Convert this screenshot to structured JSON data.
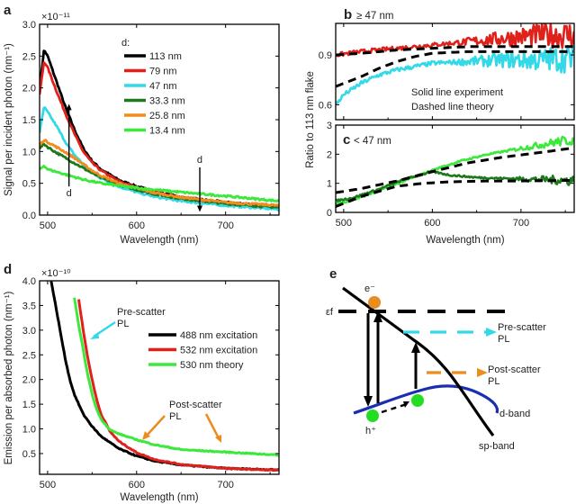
{
  "chart_data": [
    {
      "id": "a",
      "type": "line",
      "panel_label": "a",
      "xlabel": "Wavelength (nm)",
      "ylabel": "Signal per incident photon (nm⁻¹)",
      "multiplier": "×10⁻¹¹",
      "xlim": [
        491,
        760
      ],
      "ylim": [
        0,
        3.0
      ],
      "xticks": [
        500,
        600,
        700
      ],
      "yticks": [
        0.0,
        0.5,
        1.0,
        1.5,
        2.0,
        2.5,
        3.0
      ],
      "ytick_labels": [
        "0.0",
        "0.5",
        "1.0",
        "1.5",
        "2.0",
        "2.5",
        "3.0"
      ],
      "legend_title": "d:",
      "legend_position": "top-right",
      "annotations": [
        {
          "text": "d",
          "arrow": "up",
          "x": 524,
          "y_from": 0.45,
          "y_to": 1.75
        },
        {
          "text": "d",
          "arrow": "down",
          "x": 671,
          "y_from": 0.75,
          "y_to": 0.05
        }
      ],
      "series": [
        {
          "name": "113 nm",
          "color": "#000000",
          "x": [
            491,
            496,
            500,
            510,
            520,
            530,
            540,
            550,
            560,
            580,
            600,
            620,
            650,
            700,
            760
          ],
          "y": [
            2.0,
            2.6,
            2.5,
            2.1,
            1.7,
            1.35,
            1.05,
            0.85,
            0.72,
            0.55,
            0.45,
            0.37,
            0.28,
            0.2,
            0.14
          ]
        },
        {
          "name": "79 nm",
          "color": "#e0201b",
          "x": [
            491,
            496,
            500,
            510,
            520,
            530,
            540,
            550,
            560,
            580,
            600,
            620,
            650,
            700,
            760
          ],
          "y": [
            1.9,
            2.42,
            2.32,
            1.95,
            1.6,
            1.28,
            1.0,
            0.82,
            0.7,
            0.53,
            0.43,
            0.36,
            0.27,
            0.19,
            0.13
          ]
        },
        {
          "name": "47 nm",
          "color": "#33d9e6",
          "x": [
            491,
            496,
            500,
            510,
            520,
            530,
            540,
            550,
            560,
            580,
            600,
            620,
            650,
            700,
            760
          ],
          "y": [
            1.3,
            1.7,
            1.62,
            1.4,
            1.15,
            0.95,
            0.8,
            0.67,
            0.58,
            0.45,
            0.36,
            0.29,
            0.22,
            0.15,
            0.09
          ]
        },
        {
          "name": "33.3 nm",
          "color": "#1c7a1c",
          "x": [
            491,
            496,
            500,
            510,
            520,
            530,
            540,
            550,
            560,
            580,
            600,
            620,
            650,
            700,
            760
          ],
          "y": [
            1.05,
            1.12,
            1.07,
            0.98,
            0.9,
            0.82,
            0.74,
            0.66,
            0.59,
            0.48,
            0.4,
            0.33,
            0.26,
            0.18,
            0.12
          ]
        },
        {
          "name": "25.8 nm",
          "color": "#f28c1f",
          "x": [
            491,
            496,
            500,
            510,
            520,
            530,
            540,
            550,
            560,
            580,
            600,
            620,
            650,
            700,
            760
          ],
          "y": [
            1.1,
            1.18,
            1.15,
            1.07,
            0.99,
            0.9,
            0.8,
            0.7,
            0.62,
            0.5,
            0.42,
            0.35,
            0.28,
            0.2,
            0.15
          ]
        },
        {
          "name": "13.4 nm",
          "color": "#3de83d",
          "x": [
            491,
            496,
            500,
            510,
            520,
            530,
            540,
            550,
            560,
            580,
            600,
            620,
            650,
            700,
            760
          ],
          "y": [
            0.72,
            0.78,
            0.72,
            0.68,
            0.64,
            0.6,
            0.56,
            0.53,
            0.5,
            0.46,
            0.43,
            0.4,
            0.36,
            0.3,
            0.22
          ]
        }
      ]
    },
    {
      "id": "b",
      "type": "line",
      "panel_label": "b",
      "subtitle": "≥ 47 nm",
      "xlim": [
        491,
        760
      ],
      "ylim": [
        0.51,
        1.09
      ],
      "xticks": [
        500,
        600,
        700
      ],
      "yticks": [
        0.6,
        0.9
      ],
      "ytick_labels": [
        "0.6",
        "0.9"
      ],
      "annotations": [
        "Solid line experiment",
        "Dashed line theory"
      ],
      "series": [
        {
          "name": "79 nm experiment",
          "style": "solid",
          "color": "#e0201b",
          "x": [
            491,
            520,
            560,
            600,
            640,
            680,
            720,
            760
          ],
          "y": [
            0.9,
            0.92,
            0.94,
            0.96,
            0.98,
            1.0,
            1.02,
            1.02
          ]
        },
        {
          "name": "47 nm experiment",
          "style": "solid",
          "color": "#33d9e6",
          "x": [
            491,
            500,
            520,
            540,
            560,
            580,
            600,
            640,
            680,
            720,
            760
          ],
          "y": [
            0.6,
            0.66,
            0.73,
            0.78,
            0.81,
            0.83,
            0.85,
            0.86,
            0.87,
            0.87,
            0.88
          ]
        },
        {
          "name": "79 nm theory",
          "style": "dashed",
          "color": "#000000",
          "x": [
            491,
            520,
            560,
            600,
            640,
            700,
            760
          ],
          "y": [
            0.9,
            0.91,
            0.93,
            0.94,
            0.95,
            0.95,
            0.95
          ]
        },
        {
          "name": "47 nm theory",
          "style": "dashed",
          "color": "#000000",
          "x": [
            491,
            520,
            540,
            560,
            580,
            600,
            640,
            700,
            760
          ],
          "y": [
            0.71,
            0.77,
            0.82,
            0.86,
            0.89,
            0.91,
            0.92,
            0.92,
            0.92
          ]
        }
      ]
    },
    {
      "id": "c",
      "type": "line",
      "panel_label": "c",
      "subtitle": "< 47 nm",
      "xlabel": "Wavelength (nm)",
      "ylabel": "Ratio to 113 nm flake",
      "xlim": [
        491,
        760
      ],
      "ylim": [
        0,
        3
      ],
      "xticks": [
        500,
        600,
        700
      ],
      "yticks": [
        0,
        1,
        2,
        3
      ],
      "ytick_labels": [
        "0",
        "1",
        "2",
        "3"
      ],
      "series": [
        {
          "name": "13.4 nm experiment",
          "style": "solid",
          "color": "#3de83d",
          "x": [
            491,
            510,
            540,
            570,
            600,
            630,
            660,
            700,
            740,
            760
          ],
          "y": [
            0.3,
            0.42,
            0.75,
            1.1,
            1.45,
            1.75,
            1.98,
            2.2,
            2.42,
            2.5
          ]
        },
        {
          "name": "33.3 nm experiment",
          "style": "solid",
          "color": "#1c7a1c",
          "x": [
            491,
            510,
            540,
            570,
            600,
            620,
            650,
            700,
            760
          ],
          "y": [
            0.4,
            0.5,
            0.8,
            1.15,
            1.4,
            1.28,
            1.2,
            1.15,
            1.1
          ]
        },
        {
          "name": "13.4 nm theory",
          "style": "dashed",
          "color": "#000000",
          "x": [
            491,
            520,
            560,
            600,
            640,
            680,
            720,
            760
          ],
          "y": [
            0.68,
            0.82,
            1.08,
            1.4,
            1.7,
            1.9,
            2.05,
            2.22
          ]
        },
        {
          "name": "33.3 nm theory",
          "style": "dashed",
          "color": "#000000",
          "x": [
            491,
            520,
            560,
            590,
            620,
            660,
            700,
            760
          ],
          "y": [
            0.2,
            0.55,
            0.9,
            1.0,
            1.05,
            1.08,
            1.08,
            1.1
          ]
        }
      ]
    },
    {
      "id": "d",
      "type": "line",
      "panel_label": "d",
      "xlabel": "Wavelength (nm)",
      "ylabel": "Emission per absorbed photon (nm⁻¹)",
      "multiplier": "×10⁻¹⁰",
      "xlim": [
        491,
        760
      ],
      "ylim": [
        0.08,
        4.0
      ],
      "xticks": [
        500,
        600,
        700
      ],
      "yticks": [
        0.5,
        1.0,
        1.5,
        2.0,
        2.5,
        3.0,
        3.5,
        4.0
      ],
      "ytick_labels": [
        "0.5",
        "1.0",
        "1.5",
        "2.0",
        "2.5",
        "3.0",
        "3.5",
        "4.0"
      ],
      "legend_position": "center-right",
      "annotations": [
        {
          "text": "Pre-scatter PL",
          "color": "#33d9e6"
        },
        {
          "text": "Post-scatter PL",
          "color": "#ea8c1e"
        }
      ],
      "series": [
        {
          "name": "488 nm excitation",
          "color": "#000000",
          "x": [
            504,
            510,
            515,
            520,
            525,
            530,
            540,
            550,
            560,
            580,
            600,
            620,
            650,
            700,
            760
          ],
          "y": [
            4.0,
            3.4,
            2.9,
            2.4,
            2.0,
            1.7,
            1.3,
            1.05,
            0.85,
            0.6,
            0.45,
            0.35,
            0.27,
            0.2,
            0.17
          ]
        },
        {
          "name": "532 nm excitation",
          "color": "#e0201b",
          "x": [
            535,
            540,
            545,
            550,
            555,
            560,
            570,
            580,
            600,
            620,
            650,
            700,
            760
          ],
          "y": [
            3.62,
            3.0,
            2.45,
            2.0,
            1.6,
            1.3,
            0.95,
            0.75,
            0.52,
            0.38,
            0.28,
            0.2,
            0.16
          ]
        },
        {
          "name": "530 nm theory",
          "color": "#3de83d",
          "x": [
            530,
            535,
            540,
            545,
            550,
            555,
            560,
            570,
            580,
            600,
            620,
            650,
            700,
            760
          ],
          "y": [
            3.65,
            3.1,
            2.6,
            2.1,
            1.7,
            1.4,
            1.2,
            0.98,
            0.9,
            0.78,
            0.68,
            0.58,
            0.53,
            0.47
          ]
        }
      ]
    }
  ],
  "diagram_e": {
    "panel_label": "e",
    "labels": {
      "electron": "e⁻",
      "fermi": "εf",
      "hole": "h⁺",
      "pre_scatter": [
        "Pre-scatter",
        "PL"
      ],
      "post_scatter": [
        "Post-scatter",
        "PL"
      ],
      "d_band": "d-band",
      "sp_band": "sp-band"
    },
    "colors": {
      "electron": "#ea8c1e",
      "hole": "#22dd22",
      "d_band": "#1a2fb0",
      "pre_scatter": "#33d9e6",
      "post_scatter": "#ea8c1e"
    }
  }
}
